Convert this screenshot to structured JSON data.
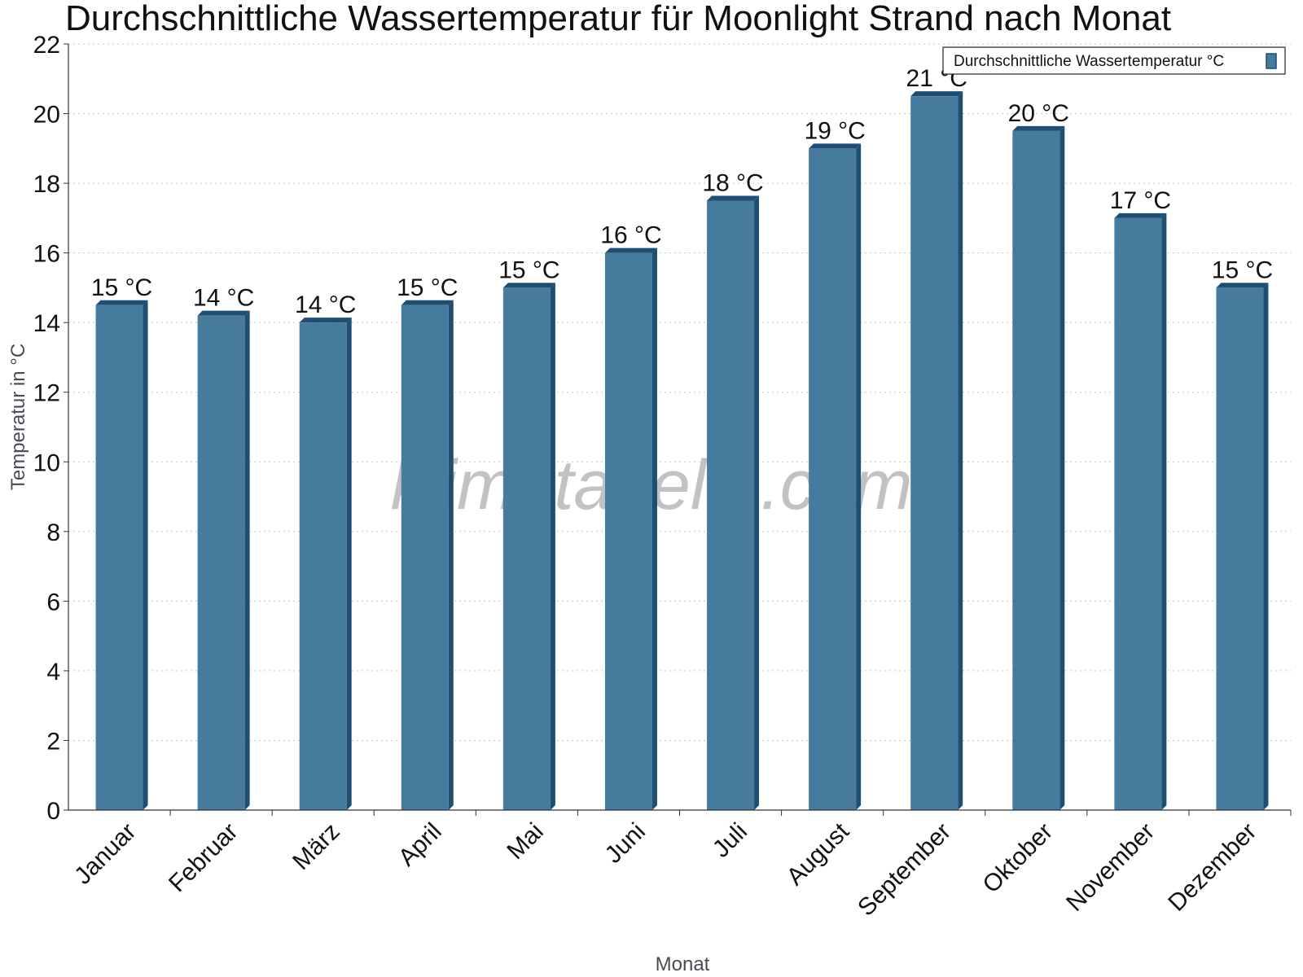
{
  "chart_data": {
    "type": "bar",
    "title": "Durchschnittliche Wassertemperatur für Moonlight Strand nach Monat",
    "xlabel": "Monat",
    "ylabel": "Temperatur in °C",
    "categories": [
      "Januar",
      "Februar",
      "März",
      "April",
      "Mai",
      "Juni",
      "Juli",
      "August",
      "September",
      "Oktober",
      "November",
      "Dezember"
    ],
    "series": [
      {
        "name": "Durchschnittliche Wassertemperatur °C",
        "values": [
          14.5,
          14.2,
          14.0,
          14.5,
          15.0,
          16.0,
          17.5,
          19.0,
          20.5,
          19.5,
          17.0,
          15.0
        ],
        "data_labels": [
          "15 °C",
          "14 °C",
          "14 °C",
          "15 °C",
          "15 °C",
          "16 °C",
          "18 °C",
          "19 °C",
          "21 °C",
          "20 °C",
          "17 °C",
          "15 °C"
        ],
        "color": "#467b9d",
        "side_color": "#1e4e72"
      }
    ],
    "ylim": [
      0,
      22
    ],
    "yticks": [
      0,
      2,
      4,
      6,
      8,
      10,
      12,
      14,
      16,
      18,
      20,
      22
    ],
    "grid": true,
    "legend_position": "top-right"
  },
  "watermark": "klimatabelle.com"
}
